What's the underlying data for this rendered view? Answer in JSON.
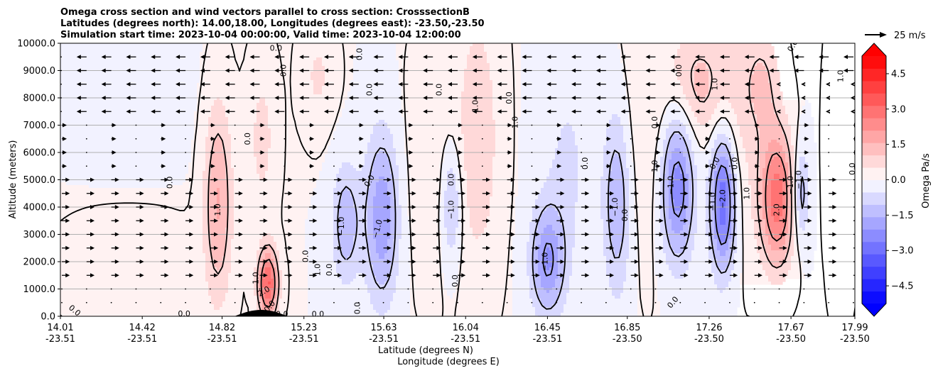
{
  "chart_data": {
    "type": "heatmap",
    "title": {
      "line1": "Omega cross section and wind vectors parallel to cross section: CrosssectionB",
      "line2": "Latitudes (degrees north): 14.00,18.00, Longitudes (degrees east): -23.50,-23.50",
      "line3": "Simulation start time: 2023-10-04 00:00:00, Valid time: 2023-10-04 12:00:00"
    },
    "ylabel": "Altitude (meters)",
    "xlabel_lat": "Latitude (degrees N)",
    "xlabel_lon": "Longitude (degrees E)",
    "ylim": [
      0,
      10000
    ],
    "y_ticks": [
      "0.0",
      "1000.0",
      "2000.0",
      "3000.0",
      "4000.0",
      "5000.0",
      "6000.0",
      "7000.0",
      "8000.0",
      "9000.0",
      "10000.0"
    ],
    "x_ticks": [
      {
        "lat": "14.01",
        "lon": "-23.51",
        "v": 14.01
      },
      {
        "lat": "14.42",
        "lon": "-23.51",
        "v": 14.42
      },
      {
        "lat": "14.82",
        "lon": "-23.51",
        "v": 14.82
      },
      {
        "lat": "15.23",
        "lon": "-23.51",
        "v": 15.23
      },
      {
        "lat": "15.63",
        "lon": "-23.51",
        "v": 15.63
      },
      {
        "lat": "16.04",
        "lon": "-23.51",
        "v": 16.04
      },
      {
        "lat": "16.45",
        "lon": "-23.51",
        "v": 16.45
      },
      {
        "lat": "16.85",
        "lon": "-23.50",
        "v": 16.85
      },
      {
        "lat": "17.26",
        "lon": "-23.50",
        "v": 17.26
      },
      {
        "lat": "17.67",
        "lon": "-23.50",
        "v": 17.67
      },
      {
        "lat": "17.99",
        "lon": "-23.50",
        "v": 17.99
      }
    ],
    "xlim": [
      14.01,
      17.99
    ],
    "colorbar": {
      "label": "Omega Pa/s",
      "ticks": [
        "4.5",
        "3.0",
        "1.5",
        "0.0",
        "−1.5",
        "−3.0",
        "−4.5"
      ],
      "tick_values": [
        4.5,
        3.0,
        1.5,
        0.0,
        -1.5,
        -3.0,
        -4.5
      ],
      "range": [
        -5.25,
        5.25
      ],
      "levels": 20
    },
    "vector_key": "25 m/s",
    "contour_labels": [
      {
        "t": "0.0",
        "lat": 14.08,
        "alt": 200,
        "r": 40
      },
      {
        "t": "0.0",
        "lat": 14.63,
        "alt": 80,
        "r": 0
      },
      {
        "t": "0.0",
        "lat": 15.12,
        "alt": 60,
        "r": 0
      },
      {
        "t": "0.0",
        "lat": 15.3,
        "alt": 60,
        "r": 0
      },
      {
        "t": "0.0",
        "lat": 14.56,
        "alt": 4900,
        "r": -90
      },
      {
        "t": "1.0",
        "lat": 14.8,
        "alt": 3900,
        "r": -90
      },
      {
        "t": "0.0",
        "lat": 14.95,
        "alt": 6500,
        "r": -90
      },
      {
        "t": "0.0",
        "lat": 15.13,
        "alt": 9000,
        "r": -90
      },
      {
        "t": "0.0",
        "lat": 15.09,
        "alt": 9800,
        "r": 0
      },
      {
        "t": "0.0",
        "lat": 15.51,
        "alt": 9600,
        "r": -90
      },
      {
        "t": "0.0",
        "lat": 15.56,
        "alt": 8300,
        "r": -90
      },
      {
        "t": "0.0",
        "lat": 15.91,
        "alt": 8300,
        "r": -90
      },
      {
        "t": "1.0",
        "lat": 14.99,
        "alt": 1400,
        "r": -90
      },
      {
        "t": "2.0",
        "lat": 15.03,
        "alt": 900,
        "r": -30
      },
      {
        "t": "0.0",
        "lat": 15.06,
        "alt": 350,
        "r": -50
      },
      {
        "t": "0.0",
        "lat": 15.24,
        "alt": 2200,
        "r": -90
      },
      {
        "t": "1.0",
        "lat": 15.3,
        "alt": 1700,
        "r": -90
      },
      {
        "t": "0.0",
        "lat": 15.36,
        "alt": 1700,
        "r": -90
      },
      {
        "t": "−1.0",
        "lat": 15.42,
        "alt": 3300,
        "r": -90
      },
      {
        "t": "−1.0",
        "lat": 15.6,
        "alt": 3200,
        "r": -75
      },
      {
        "t": "0.0",
        "lat": 15.56,
        "alt": 4950,
        "r": -60
      },
      {
        "t": "0.0",
        "lat": 15.5,
        "alt": 300,
        "r": -90
      },
      {
        "t": "0.0",
        "lat": 15.97,
        "alt": 5000,
        "r": -90
      },
      {
        "t": "−1.0",
        "lat": 15.97,
        "alt": 3900,
        "r": -90
      },
      {
        "t": "1.0",
        "lat": 16.09,
        "alt": 7700,
        "r": -90
      },
      {
        "t": "0.0",
        "lat": 15.99,
        "alt": 1300,
        "r": -90
      },
      {
        "t": "0.0",
        "lat": 16.26,
        "alt": 8000,
        "r": -90
      },
      {
        "t": "1.0",
        "lat": 16.29,
        "alt": 7100,
        "r": -90
      },
      {
        "t": "−1.0",
        "lat": 16.44,
        "alt": 2000,
        "r": -90
      },
      {
        "t": "0.0",
        "lat": 16.64,
        "alt": 5600,
        "r": -90
      },
      {
        "t": "−1.0",
        "lat": 16.79,
        "alt": 4000,
        "r": -90
      },
      {
        "t": "0.0",
        "lat": 16.84,
        "alt": 3700,
        "r": -90
      },
      {
        "t": "0.0",
        "lat": 16.99,
        "alt": 7100,
        "r": -90
      },
      {
        "t": "1.0",
        "lat": 16.99,
        "alt": 5500,
        "r": -90
      },
      {
        "t": "−1.0",
        "lat": 17.07,
        "alt": 4800,
        "r": -90
      },
      {
        "t": "0.0",
        "lat": 17.11,
        "alt": 9000,
        "r": -90
      },
      {
        "t": "0.0",
        "lat": 17.08,
        "alt": 500,
        "r": -50
      },
      {
        "t": "1.0",
        "lat": 17.29,
        "alt": 8500,
        "r": -90
      },
      {
        "t": "0.0",
        "lat": 17.29,
        "alt": 5600,
        "r": -60
      },
      {
        "t": "−1.0",
        "lat": 17.28,
        "alt": 4200,
        "r": -90
      },
      {
        "t": "−2.0",
        "lat": 17.33,
        "alt": 4300,
        "r": -90
      },
      {
        "t": "0.0",
        "lat": 17.39,
        "alt": 5600,
        "r": -90
      },
      {
        "t": "1.0",
        "lat": 17.45,
        "alt": 4500,
        "r": -90
      },
      {
        "t": "2.0",
        "lat": 17.6,
        "alt": 3900,
        "r": -90
      },
      {
        "t": "−1.0",
        "lat": 17.67,
        "alt": 4800,
        "r": -90
      },
      {
        "t": "−1.0",
        "lat": 17.71,
        "alt": 5000,
        "r": -90
      },
      {
        "t": "0.0",
        "lat": 17.68,
        "alt": 9900,
        "r": -60
      },
      {
        "t": "1.0",
        "lat": 17.92,
        "alt": 8800,
        "r": -90
      },
      {
        "t": "0.0",
        "lat": 17.98,
        "alt": 5400,
        "r": -90
      }
    ]
  },
  "colors": {
    "positive": "#ff0000",
    "negative": "#0000ff",
    "terrain": "#000000"
  }
}
